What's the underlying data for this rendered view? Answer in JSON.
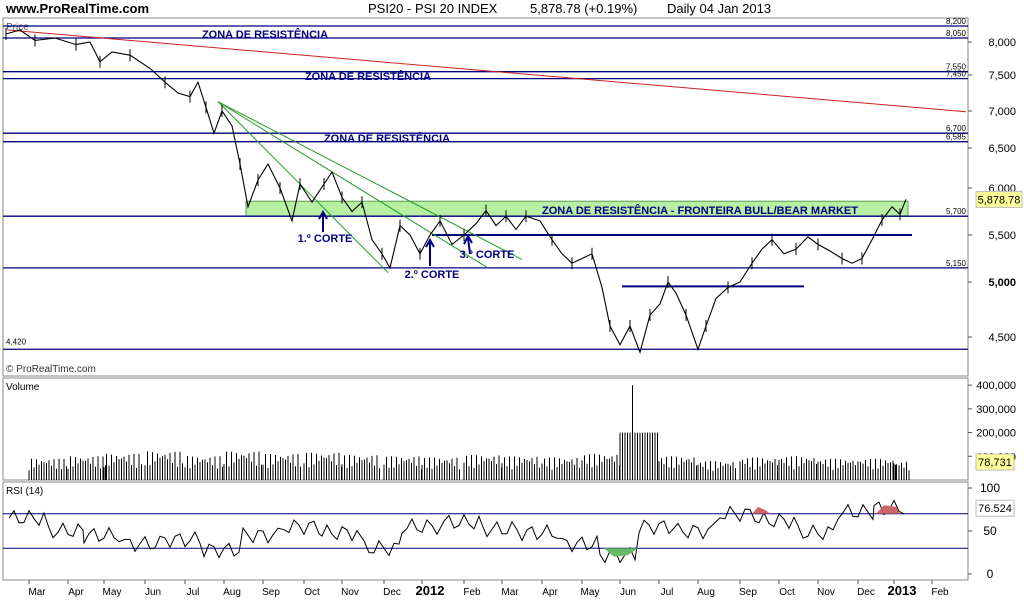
{
  "header": {
    "site": "www.ProRealTime.com",
    "title": "PSI20 - PSI 20 INDEX",
    "price_change": "5,878.78 (+0.19%)",
    "period_date": "Daily  04 Jan 2013"
  },
  "watermark": "© ProRealTime.com",
  "panels": {
    "price": "Price",
    "volume": "Volume",
    "rsi": "RSI (14)"
  },
  "colors": {
    "resistance_line": "#000080",
    "long_trendline": "#cc2222",
    "fan_lines": "#2a9a2a",
    "bull_bear_zone": "#b7f0a3",
    "price_bars": "#000000",
    "last_value_badge": "#ffff99",
    "rsi_overbought_fill": "#cc6666",
    "rsi_oversold_fill": "#66bb66"
  },
  "annotations": {
    "zone1": "ZONA DE RESISTÊNCIA",
    "zone2": "ZONA DE RESISTÊNCIA",
    "zone3": "ZONA DE RESISTÊNCIA",
    "zone4": "ZONA DE RESISTÊNCIA - FRONTEIRA BULL/BEAR MARKET",
    "corte1": "1.º CORTE",
    "corte2": "2.º CORTE",
    "corte3": "3.º CORTE"
  },
  "chart_data": [
    {
      "type": "line",
      "panel": "price",
      "x_axis": {
        "labels": [
          "Mar",
          "Apr",
          "May",
          "Jun",
          "Jul",
          "Aug",
          "Sep",
          "Oct",
          "Nov",
          "Dec",
          "2012",
          "Feb",
          "Mar",
          "Apr",
          "May",
          "Jun",
          "Jul",
          "Aug",
          "Sep",
          "Oct",
          "Nov",
          "Dec",
          "2013",
          "Feb"
        ]
      },
      "y_axis": {
        "ticks": [
          4500,
          5000,
          5500,
          6000,
          6500,
          7000,
          7500,
          8000
        ],
        "tick_labels": [
          "4,500",
          "5,000",
          "5,500",
          "6,000",
          "6,500",
          "7,000",
          "7,500",
          "8,000"
        ],
        "range": [
          4350,
          8250
        ]
      },
      "last_value": "5,878.78",
      "horizontal_levels": [
        {
          "value": 8200,
          "label": "8,200"
        },
        {
          "value": 8050,
          "label": "8,050"
        },
        {
          "value": 7550,
          "label": "7,550"
        },
        {
          "value": 7450,
          "label": "7,450"
        },
        {
          "value": 6700,
          "label": "6,700"
        },
        {
          "value": 6585,
          "label": "6,585"
        },
        {
          "value": 5700,
          "label": "5,700"
        },
        {
          "value": 5150,
          "label": "5,150"
        },
        {
          "value": 4420,
          "label": "4,420"
        }
      ],
      "approx_closes": [
        [
          "Mar",
          8100
        ],
        [
          "Apr",
          7950
        ],
        [
          "May",
          7750
        ],
        [
          "Jun",
          7200
        ],
        [
          "Jul",
          7050
        ],
        [
          "Aug",
          6200
        ],
        [
          "Sep",
          5750
        ],
        [
          "Oct",
          5850
        ],
        [
          "Nov",
          5900
        ],
        [
          "Dec",
          5300
        ],
        [
          "2012",
          5550
        ],
        [
          "Feb",
          5700
        ],
        [
          "Mar",
          5600
        ],
        [
          "Apr",
          5500
        ],
        [
          "May",
          5150
        ],
        [
          "Jun",
          4550
        ],
        [
          "Jul",
          4950
        ],
        [
          "Aug",
          4750
        ],
        [
          "Sep",
          5400
        ],
        [
          "Oct",
          5400
        ],
        [
          "Nov",
          5250
        ],
        [
          "Dec",
          5500
        ],
        [
          "2013",
          5878.78
        ]
      ]
    },
    {
      "type": "bar",
      "panel": "volume",
      "y_axis": {
        "ticks": [
          100000,
          200000,
          300000,
          400000
        ],
        "tick_labels": [
          "100,000",
          "200,000",
          "300,000",
          "400,000"
        ]
      },
      "last_value": "78,731",
      "approx_values": [
        [
          "Mar",
          90000
        ],
        [
          "Apr",
          100000
        ],
        [
          "May",
          110000
        ],
        [
          "Jun",
          120000
        ],
        [
          "Jul",
          100000
        ],
        [
          "Aug",
          120000
        ],
        [
          "Sep",
          110000
        ],
        [
          "Oct",
          115000
        ],
        [
          "Nov",
          105000
        ],
        [
          "Dec",
          100000
        ],
        [
          "2012",
          95000
        ],
        [
          "Feb",
          105000
        ],
        [
          "Mar",
          100000
        ],
        [
          "Apr",
          95000
        ],
        [
          "May",
          110000
        ],
        [
          "Jun",
          400000
        ],
        [
          "Jul",
          100000
        ],
        [
          "Aug",
          80000
        ],
        [
          "Sep",
          95000
        ],
        [
          "Oct",
          100000
        ],
        [
          "Nov",
          90000
        ],
        [
          "Dec",
          90000
        ],
        [
          "2013",
          78731
        ]
      ]
    },
    {
      "type": "line",
      "panel": "rsi",
      "y_axis": {
        "ticks": [
          0,
          50,
          100
        ],
        "tick_labels": [
          "0",
          "50",
          "100"
        ],
        "bands": [
          30,
          70
        ]
      },
      "last_value": "76.524",
      "approx_values": [
        [
          "Mar",
          65
        ],
        [
          "Apr",
          50
        ],
        [
          "May",
          45
        ],
        [
          "Jun",
          35
        ],
        [
          "Jul",
          40
        ],
        [
          "Aug",
          28
        ],
        [
          "Sep",
          45
        ],
        [
          "Oct",
          55
        ],
        [
          "Nov",
          48
        ],
        [
          "Dec",
          30
        ],
        [
          "2012",
          55
        ],
        [
          "Feb",
          60
        ],
        [
          "Mar",
          52
        ],
        [
          "Apr",
          48
        ],
        [
          "May",
          35
        ],
        [
          "Jun",
          22
        ],
        [
          "Jul",
          55
        ],
        [
          "Aug",
          50
        ],
        [
          "Sep",
          70
        ],
        [
          "Oct",
          62
        ],
        [
          "Nov",
          48
        ],
        [
          "Dec",
          72
        ],
        [
          "2013",
          76.524
        ]
      ]
    }
  ]
}
